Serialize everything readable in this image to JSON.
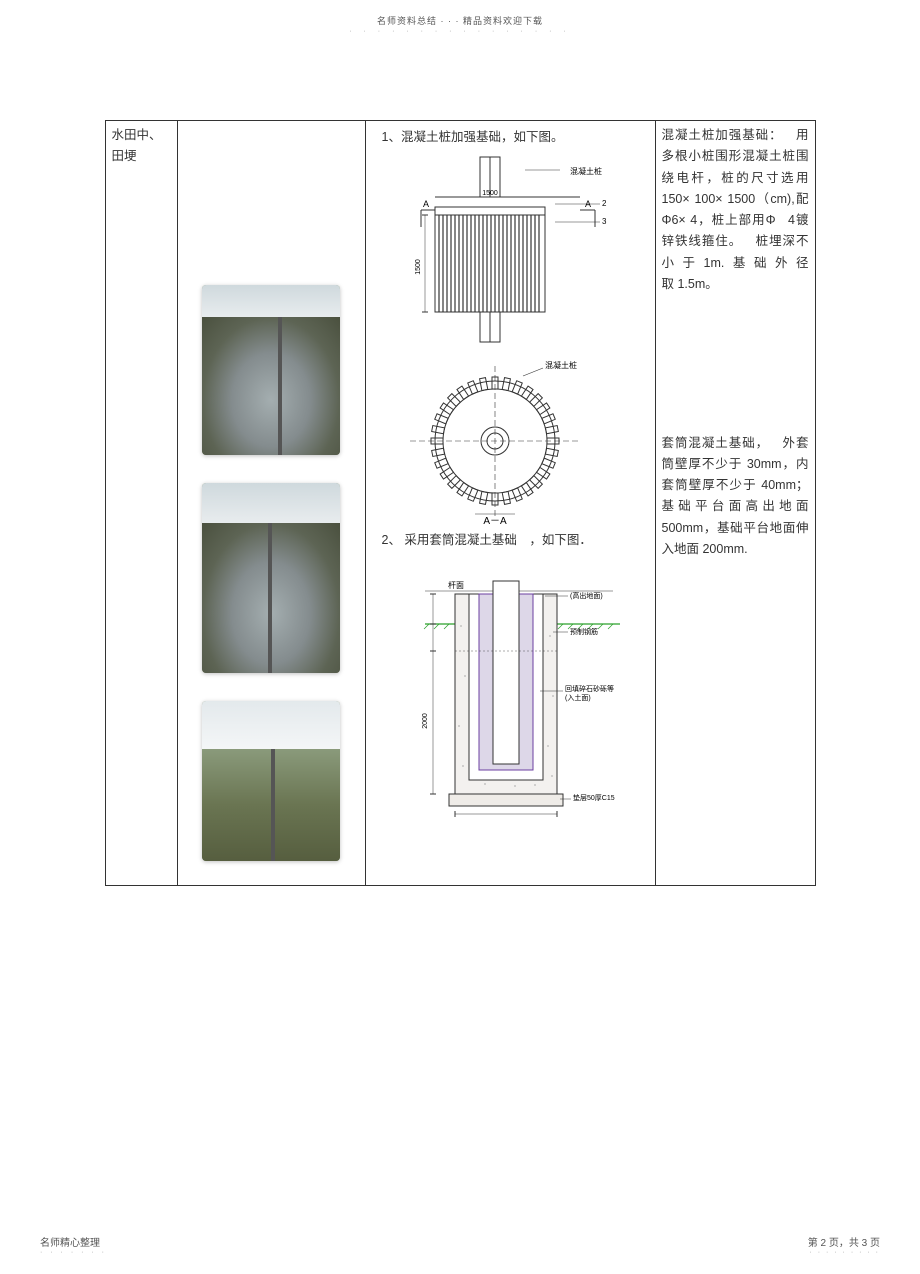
{
  "header": {
    "title": "名师资料总结 · · · 精品资料欢迎下载",
    "dots": "· · · · · · · · · · · · · · · ·"
  },
  "label_cell": "水田中、田埂",
  "caption_1": "1、混凝土桩加强基础，如下图。",
  "caption_2": "2、 采用套筒混凝土基础 ，如下图．",
  "section_view_label": "A－A",
  "diagram_labels": {
    "top_right": "混凝土桩",
    "side_dim": "1500",
    "top_dim": "1500",
    "top_view_right": "混凝土桩",
    "sleeve_left_top": "杆面",
    "sleeve_right_1": "(高出地面)",
    "sleeve_right_2": "预制钢筋",
    "sleeve_right_3": "回填碎石砂砾等",
    "sleeve_right_4": "(入土面)",
    "sleeve_bottom": "垫层50厚C15",
    "sleeve_dim_h": "2000"
  },
  "desc_1": "混凝土桩加强基础： 用多根小桩围形混凝土桩围绕电杆，桩的尺寸选用150× 100× 1500（cm),配Φ6× 4，桩上部用Φ 4镀锌铁线箍住。 桩埋深不小于1m.基础外径取 1.5m。",
  "desc_2": "套筒混凝土基础， 外套筒壁厚不少于 30mm，内套筒壁厚不少于 40mm；基础平台面高出地面500mm，基础平台地面伸入地面 200mm.",
  "footer": {
    "left": "名师精心整理",
    "right": "第 2 页，共 3 页",
    "dots_l": "· · · · · · ·",
    "dots_r": "· · · · · · · · ·"
  }
}
